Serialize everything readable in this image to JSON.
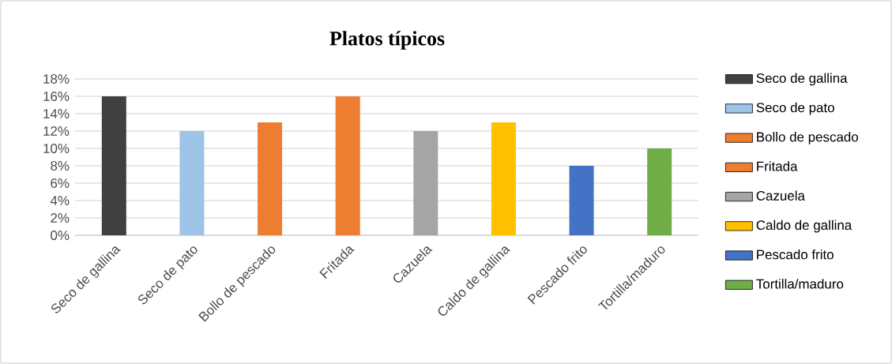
{
  "chart_data": {
    "type": "bar",
    "title": "Platos típicos",
    "categories": [
      "Seco de gallina",
      "Seco de pato",
      "Bollo de pescado",
      "Fritada",
      "Cazuela",
      "Caldo de gallina",
      "Pescado frito",
      "Tortilla/maduro"
    ],
    "series": [
      {
        "name": "Seco de gallina",
        "color": "#404040",
        "values": [
          16,
          null,
          null,
          null,
          null,
          null,
          null,
          null
        ]
      },
      {
        "name": "Seco de pato",
        "color": "#9dc3e6",
        "values": [
          null,
          12,
          null,
          null,
          null,
          null,
          null,
          null
        ]
      },
      {
        "name": "Bollo de pescado",
        "color": "#ed7d31",
        "values": [
          null,
          null,
          13,
          null,
          null,
          null,
          null,
          null
        ]
      },
      {
        "name": "Fritada",
        "color": "#ed7d31",
        "values": [
          null,
          null,
          null,
          16,
          null,
          null,
          null,
          null
        ]
      },
      {
        "name": "Cazuela",
        "color": "#a5a5a5",
        "values": [
          null,
          null,
          null,
          null,
          12,
          null,
          null,
          null
        ]
      },
      {
        "name": "Caldo de gallina",
        "color": "#ffc000",
        "values": [
          null,
          null,
          null,
          null,
          null,
          13,
          null,
          null
        ]
      },
      {
        "name": "Pescado frito",
        "color": "#4472c4",
        "values": [
          null,
          null,
          null,
          null,
          null,
          null,
          8,
          null
        ]
      },
      {
        "name": "Tortilla/maduro",
        "color": "#70ad47",
        "values": [
          null,
          null,
          null,
          null,
          null,
          null,
          null,
          10
        ]
      }
    ],
    "ylim": [
      0,
      18
    ],
    "yticks": [
      {
        "value": 0,
        "label": "0%"
      },
      {
        "value": 2,
        "label": "2%"
      },
      {
        "value": 4,
        "label": "4%"
      },
      {
        "value": 6,
        "label": "6%"
      },
      {
        "value": 8,
        "label": "8%"
      },
      {
        "value": 10,
        "label": "10%"
      },
      {
        "value": 12,
        "label": "12%"
      },
      {
        "value": 14,
        "label": "14%"
      },
      {
        "value": 16,
        "label": "16%"
      },
      {
        "value": 18,
        "label": "18%"
      }
    ],
    "grid": "y",
    "legend": "right"
  }
}
